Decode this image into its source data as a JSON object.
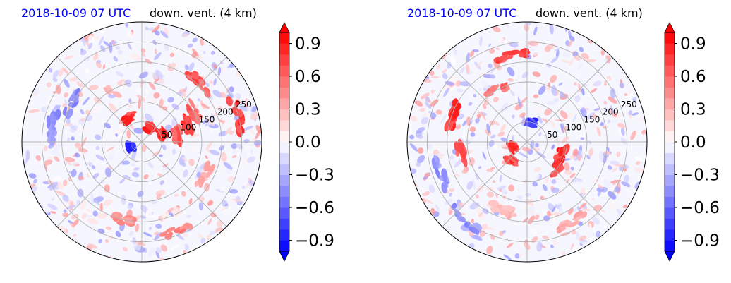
{
  "chart_data": [
    {
      "type": "heatmap",
      "projection": "polar",
      "title_left": "2018-10-09 07 UTC",
      "title_right": "down. vent. (4 km)",
      "radial_ticks": [
        "50",
        "100",
        "150",
        "200",
        "250"
      ],
      "radial_values": [
        50,
        100,
        150,
        200,
        250
      ],
      "rlim": [
        0,
        300
      ],
      "angular_gridlines_deg": [
        0,
        45,
        90,
        135,
        180,
        225,
        270,
        315
      ],
      "grid": true,
      "colormap": "bwr",
      "colorbar": {
        "ticks": [
          "−0.9",
          "−0.6",
          "−0.3",
          "0.0",
          "0.3",
          "0.6",
          "0.9"
        ],
        "tick_values": [
          -0.9,
          -0.6,
          -0.3,
          0.0,
          0.3,
          0.6,
          0.9
        ],
        "range": [
          -1.0,
          1.0
        ],
        "levels": 20,
        "extend": "both"
      },
      "features": [
        {
          "r": 40,
          "theta": 60,
          "value": 0.95
        },
        {
          "r": 55,
          "theta": 20,
          "value": 0.9
        },
        {
          "r": 70,
          "theta": 120,
          "value": 0.95
        },
        {
          "r": 30,
          "theta": 200,
          "value": -0.9
        },
        {
          "r": 90,
          "theta": 10,
          "value": 0.8
        },
        {
          "r": 120,
          "theta": 20,
          "value": 0.85
        },
        {
          "r": 150,
          "theta": 30,
          "value": 0.7
        },
        {
          "r": 210,
          "theta": 45,
          "value": 0.8
        },
        {
          "r": 250,
          "theta": 15,
          "value": 0.9
        },
        {
          "r": 200,
          "theta": 150,
          "value": -0.6
        },
        {
          "r": 230,
          "theta": 170,
          "value": -0.5
        },
        {
          "r": 200,
          "theta": 260,
          "value": 0.5
        },
        {
          "r": 240,
          "theta": 290,
          "value": 0.6
        },
        {
          "r": 180,
          "theta": 330,
          "value": 0.4
        }
      ]
    },
    {
      "type": "heatmap",
      "projection": "polar",
      "title_left": "2018-10-09 07 UTC",
      "title_right": "down. vent. (4 km)",
      "radial_ticks": [
        "50",
        "100",
        "150",
        "200",
        "250"
      ],
      "radial_values": [
        50,
        100,
        150,
        200,
        250
      ],
      "rlim": [
        0,
        300
      ],
      "angular_gridlines_deg": [
        0,
        45,
        90,
        135,
        180,
        225,
        270,
        315
      ],
      "grid": true,
      "colormap": "bwr",
      "colorbar": {
        "ticks": [
          "−0.9",
          "−0.6",
          "−0.3",
          "0.0",
          "0.3",
          "0.6",
          "0.9"
        ],
        "tick_values": [
          -0.9,
          -0.6,
          -0.3,
          0.0,
          0.3,
          0.6,
          0.9
        ],
        "range": [
          -1.0,
          1.0
        ],
        "levels": 20,
        "extend": "both"
      },
      "features": [
        {
          "r": 40,
          "theta": 200,
          "value": 0.95
        },
        {
          "r": 60,
          "theta": 230,
          "value": 0.9
        },
        {
          "r": 50,
          "theta": 80,
          "value": -0.9
        },
        {
          "r": 90,
          "theta": 340,
          "value": 0.95
        },
        {
          "r": 100,
          "theta": 320,
          "value": 0.9
        },
        {
          "r": 150,
          "theta": 120,
          "value": 0.7
        },
        {
          "r": 220,
          "theta": 100,
          "value": 0.85
        },
        {
          "r": 200,
          "theta": 160,
          "value": 0.9
        },
        {
          "r": 170,
          "theta": 190,
          "value": 0.8
        },
        {
          "r": 230,
          "theta": 200,
          "value": -0.5
        },
        {
          "r": 250,
          "theta": 230,
          "value": -0.5
        },
        {
          "r": 230,
          "theta": 300,
          "value": 0.4
        },
        {
          "r": 180,
          "theta": 250,
          "value": 0.3
        }
      ]
    }
  ]
}
